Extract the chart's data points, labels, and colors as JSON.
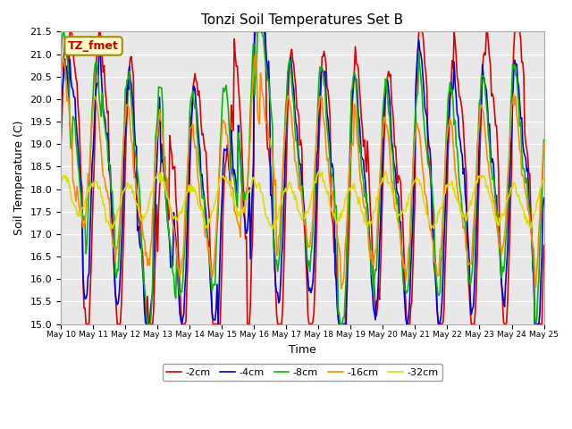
{
  "title": "Tonzi Soil Temperatures Set B",
  "xlabel": "Time",
  "ylabel": "Soil Temperature (C)",
  "ylim": [
    15.0,
    21.5
  ],
  "yticks": [
    15.0,
    15.5,
    16.0,
    16.5,
    17.0,
    17.5,
    18.0,
    18.5,
    19.0,
    19.5,
    20.0,
    20.5,
    21.0,
    21.5
  ],
  "xtick_labels": [
    "May 10",
    "May 11",
    "May 12",
    "May 13",
    "May 14",
    "May 15",
    "May 16",
    "May 17",
    "May 18",
    "May 19",
    "May 20",
    "May 21",
    "May 22",
    "May 23",
    "May 24",
    "May 25"
  ],
  "series_colors": [
    "#dd0000",
    "#0000dd",
    "#00bb00",
    "#ff8800",
    "#dddd00"
  ],
  "series_labels": [
    "-2cm",
    "-4cm",
    "-8cm",
    "-16cm",
    "-32cm"
  ],
  "legend_label": "TZ_fmet",
  "legend_bg": "#ffffcc",
  "legend_edge": "#aa8800",
  "legend_text_color": "#cc0000",
  "bg_color": "#e8e8e8",
  "line_width": 1.2,
  "n_points": 480
}
